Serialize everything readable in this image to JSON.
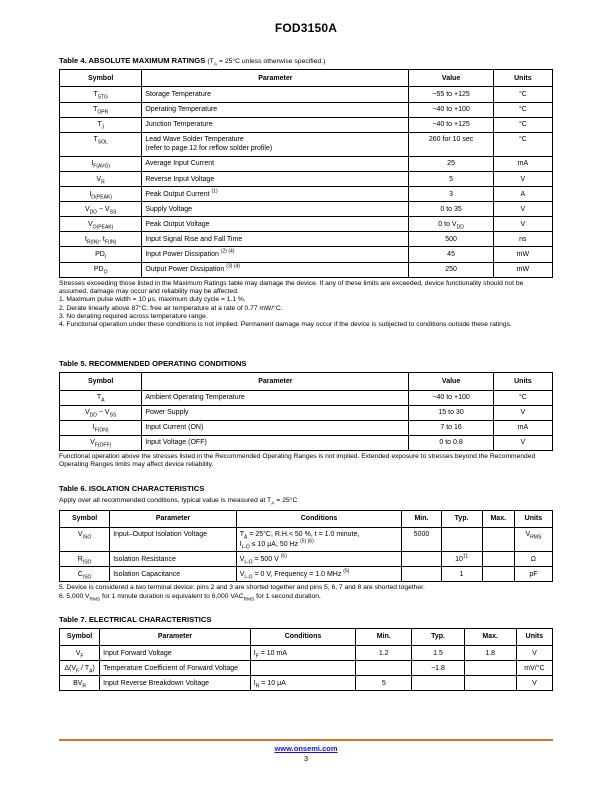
{
  "page_title": "FOD3150A",
  "footer": {
    "link": "www.onsemi.com",
    "page": "3",
    "rule_color": "#d4762a"
  },
  "table4": {
    "caption": "Table 4. ABSOLUTE MAXIMUM RATINGS",
    "caption_cond": "(T<sub>A</sub> = 25°C unless otherwise specified.)",
    "headers": [
      "Symbol",
      "Parameter",
      "Value",
      "Units"
    ],
    "rows": [
      {
        "symbol": "T<sub>STG</sub>",
        "parameter": "Storage Temperature",
        "value": "−55 to +125",
        "units": "°C"
      },
      {
        "symbol": "T<sub>OPR</sub>",
        "parameter": "Operating Temperature",
        "value": "−40 to +100",
        "units": "°C"
      },
      {
        "symbol": "T<sub>J</sub>",
        "parameter": "Junction Temperature",
        "value": "−40 to +125",
        "units": "°C"
      },
      {
        "symbol": "T<sub>SOL</sub>",
        "parameter": "Lead Wave Solder Temperature<br>(refer to page 12 for reflow solder profile)",
        "value": "260 for 10 sec",
        "units": "°C"
      },
      {
        "symbol": "I<sub>F(AVG)</sub>",
        "parameter": "Average Input Current",
        "value": "25",
        "units": "mA"
      },
      {
        "symbol": "V<sub>R</sub>",
        "parameter": "Reverse Input Voltage",
        "value": "5",
        "units": "V"
      },
      {
        "symbol": "I<sub>O(PEAK)</sub>",
        "parameter": "Peak Output Current <sup>(1)</sup>",
        "value": "3",
        "units": "A"
      },
      {
        "symbol": "V<sub>DD</sub> − V<sub>SS</sub>",
        "parameter": "Supply Voltage",
        "value": "0 to 35",
        "units": "V"
      },
      {
        "symbol": "V<sub>O(PEAK)</sub>",
        "parameter": "Peak Output Voltage",
        "value": "0 to V<sub>DD</sub>",
        "units": "V"
      },
      {
        "symbol": "t<sub>R(IN)</sub>, t<sub>F(IN)</sub>",
        "parameter": "Input Signal Rise and Fall Time",
        "value": "500",
        "units": "ns"
      },
      {
        "symbol": "PD<sub>I</sub>",
        "parameter": "Input Power Dissipation <sup>(2) (4)</sup>",
        "value": "45",
        "units": "mW"
      },
      {
        "symbol": "PD<sub>O</sub>",
        "parameter": "Output Power Dissipation <sup>(3) (4)</sup>",
        "value": "250",
        "units": "mW"
      }
    ],
    "intro_note": "Stresses exceeding those listed in the Maximum Ratings table may damage the device. If any of these limits are exceeded, device functionality should not be assumed, damage may occur and reliability may be affected.",
    "notes": [
      "1. Maximum pulse width = 10 μs, maximum duty cycle = 1.1 %.",
      "2. Derate linearly above 87°C, free air temperature at a rate of 0.77 mW/°C.",
      "3. No derating required across temperature range.",
      "4. Functional operation under these conditions is not implied. Permanent damage may occur if the device is subjected to conditions outside these ratings."
    ]
  },
  "table5": {
    "caption": "Table 5. RECOMMENDED OPERATING CONDITIONS",
    "headers": [
      "Symbol",
      "Parameter",
      "Value",
      "Units"
    ],
    "rows": [
      {
        "symbol": "T<sub>A</sub>",
        "parameter": "Ambient Operating Temperature",
        "value": "−40 to +100",
        "units": "°C"
      },
      {
        "symbol": "V<sub>DD</sub> − V<sub>SS</sub>",
        "parameter": "Power Supply",
        "value": "15 to 30",
        "units": "V"
      },
      {
        "symbol": "I<sub>F(ON)</sub>",
        "parameter": "Input Current (ON)",
        "value": "7 to 16",
        "units": "mA"
      },
      {
        "symbol": "V<sub>F(OFF)</sub>",
        "parameter": "Input Voltage (OFF)",
        "value": "0 to 0.8",
        "units": "V"
      }
    ],
    "note": "Functional operation above the stresses listed in the Recommended Operating Ranges is not implied. Extended exposure to stresses beyond the Recommended Operating Ranges limits may affect device reliability."
  },
  "table6": {
    "caption": "Table 6. ISOLATION CHARACTERISTICS",
    "subtitle": "Apply over all recommended conditions, typical value is measured at T<sub>A</sub> = 25°C",
    "headers": [
      "Symbol",
      "Parameter",
      "Conditions",
      "Min.",
      "Typ.",
      "Max.",
      "Units"
    ],
    "rows": [
      {
        "symbol": "V<sub>ISO</sub>",
        "parameter": "Input–Output Isolation Voltage",
        "conditions": "T<sub>A</sub> = 25°C, R.H.&lt; 50 %, t = 1.0 minute,<br>I<sub>I–O</sub> ≤ 10 μA, 50 Hz <sup>(5) (6)</sup>",
        "min": "5000",
        "typ": "",
        "max": "",
        "units": "V<sub>RMS</sub>"
      },
      {
        "symbol": "R<sub>ISO</sub>",
        "parameter": "Isolation Resistance",
        "conditions": "V<sub>I–O</sub> = 500 V <sup>(5)</sup>",
        "min": "",
        "typ": "10<sup>11</sup>",
        "max": "",
        "units": "Ω"
      },
      {
        "symbol": "C<sub>ISO</sub>",
        "parameter": "Isolation Capacitance",
        "conditions": "V<sub>I–O</sub> = 0 V, Frequency = 1.0 MHz <sup>(5)</sup>",
        "min": "",
        "typ": "1",
        "max": "",
        "units": "pF"
      }
    ],
    "notes": [
      "5. Device is considered a two terminal device: pins 2 and 3 are shorted together and pins 5, 6, 7 and 8 are shorted together.",
      "6. 5,000 V<sub>RMS</sub> for 1 minute duration is equivalent to 6,000 VAC<sub>RMS</sub> for 1 second duration."
    ]
  },
  "table7": {
    "caption": "Table 7. ELECTRICAL CHARACTERISTICS",
    "headers": [
      "Symbol",
      "Parameter",
      "Conditions",
      "Min.",
      "Typ.",
      "Max.",
      "Units"
    ],
    "rows": [
      {
        "symbol": "V<sub>F</sub>",
        "parameter": "Input Forward Voltage",
        "conditions": "I<sub>F</sub> = 10 mA",
        "min": "1.2",
        "typ": "1.5",
        "max": "1.8",
        "units": "V"
      },
      {
        "symbol": "Δ(V<sub>F</sub> / T<sub>A</sub>)",
        "parameter": "Temperature Coefficient of Forward Voltage",
        "conditions": "",
        "min": "",
        "typ": "−1.8",
        "max": "",
        "units": "mV/°C"
      },
      {
        "symbol": "BV<sub>R</sub>",
        "parameter": "Input Reverse Breakdown Voltage",
        "conditions": "I<sub>R</sub> = 10 μA",
        "min": "5",
        "typ": "",
        "max": "",
        "units": "V"
      }
    ]
  }
}
